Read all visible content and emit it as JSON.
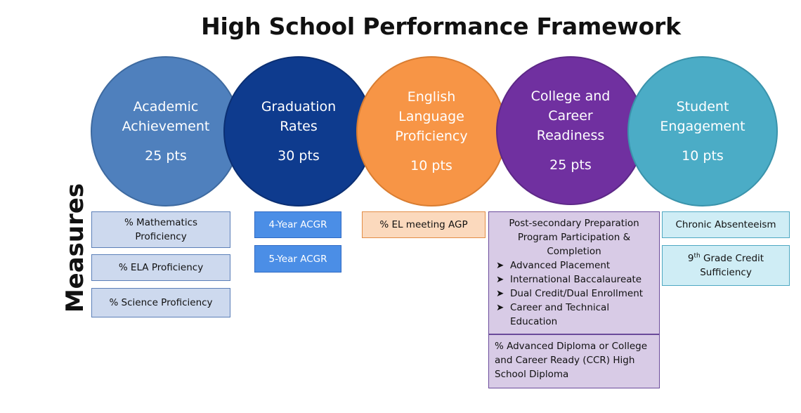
{
  "title": "High School Performance Framework",
  "side_label": "Measures",
  "categories": [
    {
      "label": "Academic Achievement",
      "points": "25 pts",
      "color": "#4f80bd"
    },
    {
      "label": "Graduation Rates",
      "points": "30 pts",
      "color": "#0e3b8e"
    },
    {
      "label": "English Language Proficiency",
      "points": "10 pts",
      "color": "#f79546"
    },
    {
      "label": "College and Career Readiness",
      "points": "25 pts",
      "color": "#7030a0"
    },
    {
      "label": "Student Engagement",
      "points": "10 pts",
      "color": "#4bacc6"
    }
  ],
  "measures": {
    "academic": [
      "% Mathematics Proficiency",
      "% ELA Proficiency",
      "% Science Proficiency"
    ],
    "graduation": [
      "4-Year ACGR",
      "5-Year ACGR"
    ],
    "english": [
      "% EL meeting AGP"
    ],
    "ccr": {
      "heading": "Post-secondary Preparation Program Participation & Completion",
      "items": [
        "Advanced Placement",
        "International Baccalaureate",
        "Dual Credit/Dual Enrollment",
        "Career and Technical Education"
      ],
      "diploma": "% Advanced Diploma or College and Career Ready (CCR) High School Diploma"
    },
    "engagement": {
      "absenteeism": "Chronic Absenteeism",
      "credit_grade_num": "9",
      "credit_grade_sup": "th",
      "credit_rest": " Grade Credit Sufficiency"
    }
  },
  "bullet_glyph": "➤"
}
